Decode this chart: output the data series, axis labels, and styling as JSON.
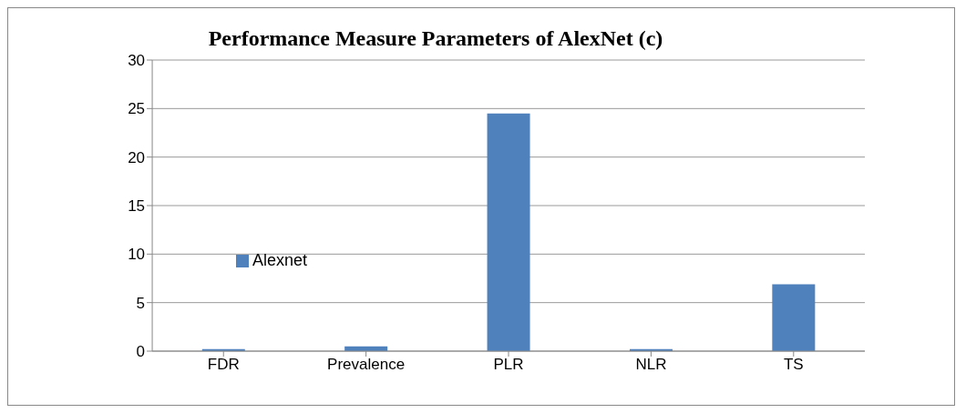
{
  "chart_data": {
    "type": "bar",
    "title": "Performance Measure Parameters of AlexNet (c)",
    "categories": [
      "FDR",
      "Prevalence",
      "PLR",
      "NLR",
      "TS"
    ],
    "series": [
      {
        "name": "Alexnet",
        "color": "#4f81bd",
        "values": [
          0.2,
          0.5,
          24.5,
          0.2,
          6.9
        ]
      }
    ],
    "ylim": [
      0,
      30
    ],
    "yticks": [
      0,
      5,
      10,
      15,
      20,
      25,
      30
    ],
    "grid": "y",
    "legend": "left"
  }
}
